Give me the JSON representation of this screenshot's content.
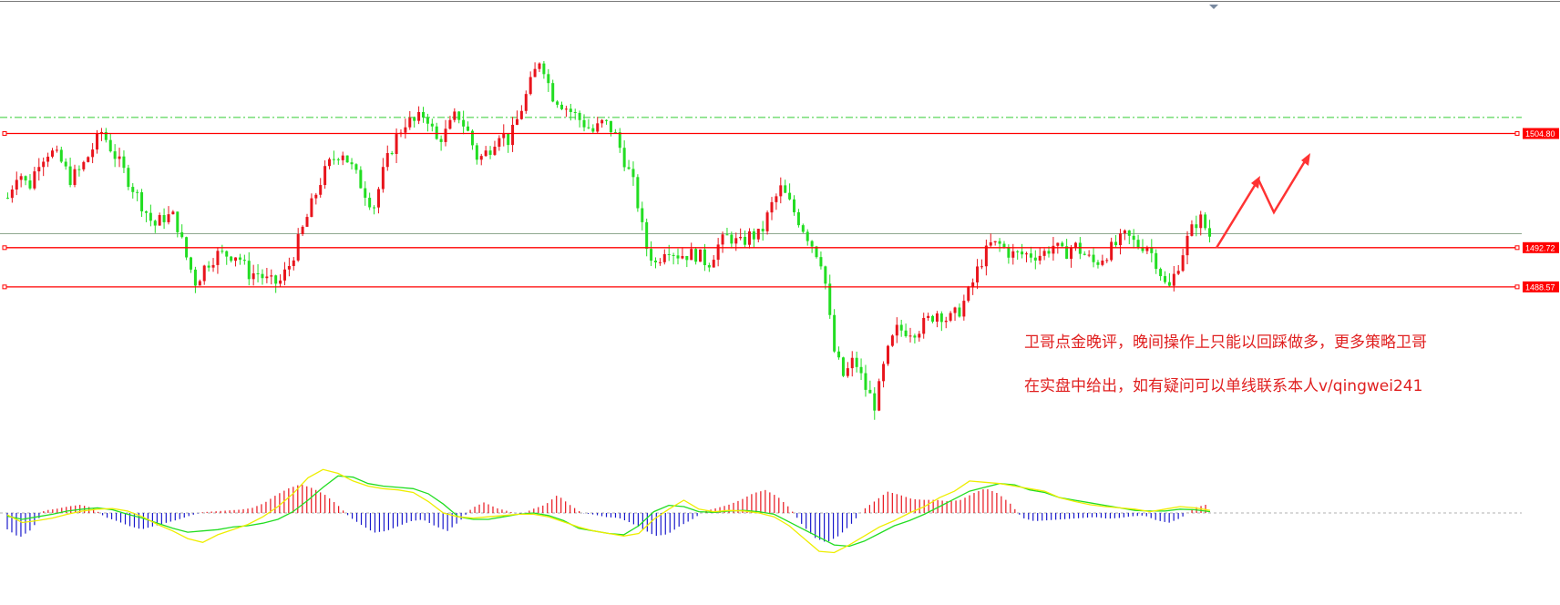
{
  "chart_data": {
    "type": "candlestick",
    "price_levels": [
      {
        "value": 1504.8,
        "label": "1504.80",
        "color": "#ff0000"
      },
      {
        "value": 1492.72,
        "label": "1492.72",
        "color": "#ff0000"
      },
      {
        "value": 1488.57,
        "label": "1488.57",
        "color": "#ff0000"
      }
    ],
    "reference_lines": [
      {
        "value": 1506.5,
        "style": "dash-dot",
        "color": "#33cc33"
      },
      {
        "value": 1494.2,
        "style": "solid",
        "color": "#8fa88f"
      }
    ],
    "ylim": [
      1471.2,
      1517.0
    ],
    "colors": {
      "up": "#e8141c",
      "down": "#22dd22",
      "macd_pos": "#e8141c",
      "macd_neg": "#1a1acc",
      "dif": "#22dd22",
      "dea": "#eeee00",
      "arrow": "#ff3333"
    },
    "close_series": [
      1498,
      1501,
      1499,
      1502,
      1503,
      1502,
      1500,
      1501,
      1503,
      1505,
      1503,
      1501,
      1499,
      1497,
      1495,
      1496,
      1496,
      1492,
      1489,
      1491,
      1492,
      1492,
      1492,
      1490,
      1490,
      1489,
      1489,
      1491,
      1494,
      1497,
      1500,
      1502,
      1503,
      1501,
      1499,
      1497,
      1501,
      1504,
      1506,
      1506,
      1507,
      1504,
      1505,
      1507,
      1505,
      1502,
      1503,
      1505,
      1504,
      1507,
      1510,
      1513,
      1509,
      1508,
      1507,
      1506,
      1505,
      1506,
      1505,
      1502,
      1499,
      1493,
      1491,
      1493,
      1492,
      1492,
      1492,
      1491,
      1493,
      1494,
      1493,
      1494,
      1494,
      1497,
      1499,
      1497,
      1495,
      1493,
      1491,
      1482,
      1479,
      1481,
      1478,
      1476,
      1481,
      1484,
      1484,
      1484,
      1485,
      1486,
      1485,
      1486,
      1488,
      1491,
      1493,
      1493,
      1492,
      1492,
      1492,
      1492,
      1493,
      1492,
      1493,
      1492,
      1491,
      1492,
      1493,
      1494,
      1493,
      1493,
      1491,
      1488,
      1491,
      1494,
      1496,
      1494
    ],
    "macd_hist": [
      -2,
      -3,
      -2,
      0.3,
      0.5,
      0.8,
      1,
      0.6,
      -0.5,
      -1,
      -1.6,
      -2,
      -1.6,
      -1.2,
      -0.8,
      -0.3,
      0.1,
      0.2,
      0.3,
      0.4,
      0.6,
      1.2,
      2.2,
      3,
      3.5,
      3,
      2.2,
      1,
      -0.5,
      -1.5,
      -2.4,
      -2.2,
      -1.6,
      -1,
      -0.8,
      -1.6,
      -2.2,
      -1,
      0.6,
      1.3,
      0.6,
      0.2,
      -0.2,
      0.5,
      1,
      2.2,
      1,
      0,
      -0.2,
      -0.5,
      -0.6,
      -1.2,
      -2,
      -2.8,
      -2.6,
      -1.6,
      -0.8,
      0.2,
      0.6,
      1,
      1.6,
      2.4,
      2.8,
      2,
      0.6,
      -1.4,
      -3,
      -3.6,
      -2.8,
      -1.4,
      0.4,
      1.5,
      2.6,
      2.2,
      1.7,
      1.6,
      1.6,
      1.4,
      1.6,
      2.4,
      3,
      2.4,
      1.2,
      -0.6,
      -1,
      -0.9,
      -0.8,
      -0.7,
      -0.6,
      -0.5,
      -0.7,
      -0.6,
      -0.4,
      -0.3,
      -0.9,
      -1.2,
      -0.6,
      0.6,
      1
    ],
    "dif": [
      -0.5,
      -1,
      -0.6,
      -0.2,
      0.3,
      0.6,
      0.8,
      0.5,
      -0.2,
      -0.8,
      -1.6,
      -2.4,
      -3,
      -2.8,
      -2.6,
      -2.2,
      -2,
      -1.6,
      -1,
      0.2,
      2,
      4,
      5.8,
      5.6,
      4.6,
      4.2,
      4,
      3.8,
      3,
      1.4,
      -0.6,
      -1,
      -1,
      -0.6,
      -0.2,
      0,
      -0.4,
      -1.2,
      -2.4,
      -2.8,
      -3.2,
      -3.4,
      -2,
      0.2,
      1.2,
      1,
      0.2,
      0.1,
      0.3,
      0.4,
      0.2,
      -0.2,
      -1.4,
      -2.6,
      -3.8,
      -5,
      -5.2,
      -4.4,
      -3.2,
      -2,
      -1.2,
      -0.2,
      1,
      2.2,
      3.4,
      4,
      4.6,
      4.4,
      3.6,
      3.2,
      2.4,
      2,
      1.6,
      1.2,
      0.8,
      0.4,
      0.3,
      0.3,
      0.6,
      0.5,
      0.2
    ],
    "dea": [
      -0.3,
      -1.5,
      -1.2,
      -0.8,
      -0.2,
      0.3,
      0.6,
      0.7,
      0.3,
      -0.6,
      -1.8,
      -2.8,
      -4,
      -4.6,
      -3.4,
      -2.6,
      -1.8,
      -0.6,
      1,
      3,
      5.5,
      6.8,
      6.2,
      5,
      4.2,
      3.8,
      3.6,
      3.2,
      1.8,
      0,
      -0.6,
      -0.8,
      -0.6,
      -0.4,
      -0.2,
      -0.2,
      -0.6,
      -1.4,
      -2.2,
      -2.8,
      -3.2,
      -3.6,
      -3.2,
      -1,
      0.6,
      2,
      0.6,
      0.2,
      0.4,
      0.3,
      0,
      -0.6,
      -2,
      -4,
      -6,
      -6.2,
      -5,
      -3.6,
      -2.2,
      -1.2,
      0,
      1,
      2.4,
      3.4,
      5,
      4.8,
      4.6,
      4.2,
      3.8,
      3.4,
      2.4,
      1.8,
      1.3,
      1,
      0.8,
      0.6,
      0.2,
      0.6,
      1,
      0.8,
      0.4
    ]
  },
  "annotation": {
    "line1": "卫哥点金晚评，晚间操作上只能以回踩做多，更多策略卫哥",
    "line2": "在实盘中给出，如有疑问可以单线联系本人v/qingwei241"
  }
}
